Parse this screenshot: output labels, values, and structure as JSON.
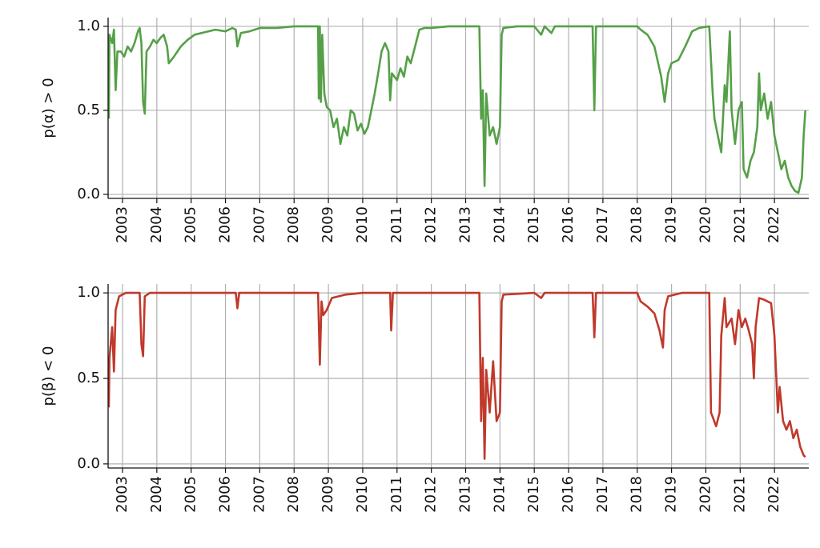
{
  "chart_data": [
    {
      "type": "line",
      "ylabel": "p(α) > 0",
      "color": "#55a047",
      "x": [
        2002.6,
        2002.62,
        2002.7,
        2002.75,
        2002.8,
        2002.85,
        2002.95,
        2003.05,
        2003.15,
        2003.25,
        2003.35,
        2003.45,
        2003.5,
        2003.55,
        2003.6,
        2003.65,
        2003.7,
        2003.8,
        2003.9,
        2004.0,
        2004.1,
        2004.2,
        2004.3,
        2004.35,
        2004.5,
        2004.7,
        2004.9,
        2005.1,
        2005.3,
        2005.5,
        2005.7,
        2006.0,
        2006.2,
        2006.3,
        2006.35,
        2006.45,
        2006.7,
        2007.0,
        2007.5,
        2008.0,
        2008.7,
        2008.72,
        2008.75,
        2008.78,
        2008.82,
        2008.88,
        2008.95,
        2009.05,
        2009.15,
        2009.25,
        2009.35,
        2009.45,
        2009.55,
        2009.65,
        2009.75,
        2009.85,
        2009.95,
        2010.05,
        2010.15,
        2010.25,
        2010.35,
        2010.45,
        2010.55,
        2010.65,
        2010.75,
        2010.8,
        2010.85,
        2011.0,
        2011.1,
        2011.2,
        2011.3,
        2011.4,
        2011.55,
        2011.65,
        2011.8,
        2012.0,
        2012.5,
        2013.0,
        2013.4,
        2013.45,
        2013.5,
        2013.55,
        2013.6,
        2013.7,
        2013.8,
        2013.9,
        2014.0,
        2014.05,
        2014.1,
        2014.5,
        2015.0,
        2015.2,
        2015.3,
        2015.5,
        2015.6,
        2016.0,
        2016.7,
        2016.75,
        2016.8,
        2017.5,
        2018.0,
        2018.1,
        2018.3,
        2018.5,
        2018.7,
        2018.8,
        2018.9,
        2019.0,
        2019.2,
        2019.4,
        2019.6,
        2019.8,
        2020.1,
        2020.2,
        2020.25,
        2020.35,
        2020.45,
        2020.55,
        2020.6,
        2020.7,
        2020.75,
        2020.85,
        2020.95,
        2021.05,
        2021.1,
        2021.2,
        2021.3,
        2021.4,
        2021.5,
        2021.55,
        2021.6,
        2021.7,
        2021.8,
        2021.9,
        2022.0,
        2022.1,
        2022.2,
        2022.3,
        2022.4,
        2022.5,
        2022.6,
        2022.7,
        2022.8,
        2022.85,
        2022.9
      ],
      "values": [
        0.45,
        0.95,
        0.9,
        0.98,
        0.62,
        0.85,
        0.85,
        0.82,
        0.88,
        0.85,
        0.9,
        0.97,
        0.99,
        0.9,
        0.55,
        0.48,
        0.85,
        0.88,
        0.92,
        0.9,
        0.93,
        0.95,
        0.88,
        0.78,
        0.82,
        0.88,
        0.92,
        0.95,
        0.96,
        0.97,
        0.98,
        0.97,
        0.99,
        0.98,
        0.88,
        0.96,
        0.97,
        0.99,
        0.99,
        1.0,
        1.0,
        0.57,
        1.0,
        0.55,
        0.95,
        0.6,
        0.52,
        0.5,
        0.4,
        0.45,
        0.3,
        0.4,
        0.35,
        0.5,
        0.48,
        0.38,
        0.42,
        0.36,
        0.4,
        0.5,
        0.6,
        0.72,
        0.85,
        0.9,
        0.85,
        0.56,
        0.72,
        0.68,
        0.75,
        0.7,
        0.82,
        0.78,
        0.9,
        0.98,
        0.99,
        0.99,
        1.0,
        1.0,
        1.0,
        0.45,
        0.62,
        0.05,
        0.6,
        0.35,
        0.4,
        0.3,
        0.4,
        0.95,
        0.99,
        1.0,
        1.0,
        0.95,
        1.0,
        0.96,
        1.0,
        1.0,
        1.0,
        0.5,
        1.0,
        1.0,
        1.0,
        0.98,
        0.95,
        0.88,
        0.7,
        0.55,
        0.72,
        0.78,
        0.8,
        0.88,
        0.97,
        0.99,
        1.0,
        0.6,
        0.45,
        0.35,
        0.25,
        0.65,
        0.55,
        0.97,
        0.5,
        0.3,
        0.5,
        0.55,
        0.15,
        0.1,
        0.2,
        0.25,
        0.4,
        0.72,
        0.5,
        0.6,
        0.45,
        0.55,
        0.35,
        0.25,
        0.15,
        0.2,
        0.1,
        0.05,
        0.02,
        0.01,
        0.1,
        0.35,
        0.5
      ],
      "xlim": [
        2002.58,
        2023.0
      ],
      "xticks": [
        2003,
        2004,
        2005,
        2006,
        2007,
        2008,
        2009,
        2010,
        2011,
        2012,
        2013,
        2014,
        2015,
        2016,
        2017,
        2018,
        2019,
        2020,
        2021,
        2022
      ],
      "ylim": [
        -0.024,
        1.052
      ],
      "yticks": [
        {
          "value": 0,
          "label": "0.0"
        },
        {
          "value": 0.5,
          "label": "0.5"
        },
        {
          "value": 1,
          "label": "1.0"
        }
      ],
      "grid": true
    },
    {
      "type": "line",
      "ylabel": "p(β) < 0",
      "color": "#c0392b",
      "x": [
        2002.6,
        2002.62,
        2002.7,
        2002.75,
        2002.8,
        2002.9,
        2003.1,
        2003.5,
        2003.55,
        2003.6,
        2003.65,
        2003.8,
        2006.3,
        2006.35,
        2006.4,
        2008.7,
        2008.75,
        2008.8,
        2008.85,
        2008.95,
        2009.1,
        2009.5,
        2010.0,
        2010.8,
        2010.83,
        2010.88,
        2013.4,
        2013.45,
        2013.5,
        2013.55,
        2013.6,
        2013.7,
        2013.8,
        2013.9,
        2014.0,
        2014.05,
        2014.1,
        2015.0,
        2015.2,
        2015.3,
        2016.7,
        2016.75,
        2016.8,
        2018.0,
        2018.1,
        2018.3,
        2018.5,
        2018.65,
        2018.75,
        2018.8,
        2018.9,
        2019.3,
        2020.1,
        2020.15,
        2020.3,
        2020.4,
        2020.45,
        2020.55,
        2020.6,
        2020.75,
        2020.85,
        2020.95,
        2021.05,
        2021.15,
        2021.25,
        2021.35,
        2021.4,
        2021.45,
        2021.55,
        2021.7,
        2021.9,
        2022.0,
        2022.1,
        2022.15,
        2022.25,
        2022.35,
        2022.45,
        2022.55,
        2022.65,
        2022.75,
        2022.85,
        2022.9
      ],
      "values": [
        0.33,
        0.62,
        0.8,
        0.54,
        0.9,
        0.98,
        1.0,
        1.0,
        0.7,
        0.63,
        0.98,
        1.0,
        1.0,
        0.91,
        1.0,
        1.0,
        0.58,
        0.95,
        0.87,
        0.9,
        0.97,
        0.99,
        1.0,
        1.0,
        0.78,
        1.0,
        1.0,
        0.25,
        0.62,
        0.03,
        0.55,
        0.3,
        0.6,
        0.25,
        0.3,
        0.95,
        0.99,
        1.0,
        0.97,
        1.0,
        1.0,
        0.74,
        1.0,
        1.0,
        0.95,
        0.92,
        0.88,
        0.78,
        0.68,
        0.9,
        0.98,
        1.0,
        1.0,
        0.3,
        0.22,
        0.3,
        0.75,
        0.97,
        0.8,
        0.85,
        0.7,
        0.9,
        0.8,
        0.85,
        0.78,
        0.7,
        0.5,
        0.8,
        0.97,
        0.96,
        0.94,
        0.75,
        0.3,
        0.45,
        0.25,
        0.2,
        0.25,
        0.15,
        0.2,
        0.1,
        0.05,
        0.04
      ],
      "xlim": [
        2002.58,
        2023.0
      ],
      "xticks": [
        2003,
        2004,
        2005,
        2006,
        2007,
        2008,
        2009,
        2010,
        2011,
        2012,
        2013,
        2014,
        2015,
        2016,
        2017,
        2018,
        2019,
        2020,
        2021,
        2022
      ],
      "ylim": [
        -0.024,
        1.052
      ],
      "yticks": [
        {
          "value": 0,
          "label": "0.0"
        },
        {
          "value": 0.5,
          "label": "0.5"
        },
        {
          "value": 1,
          "label": "1.0"
        }
      ],
      "grid": true
    }
  ]
}
